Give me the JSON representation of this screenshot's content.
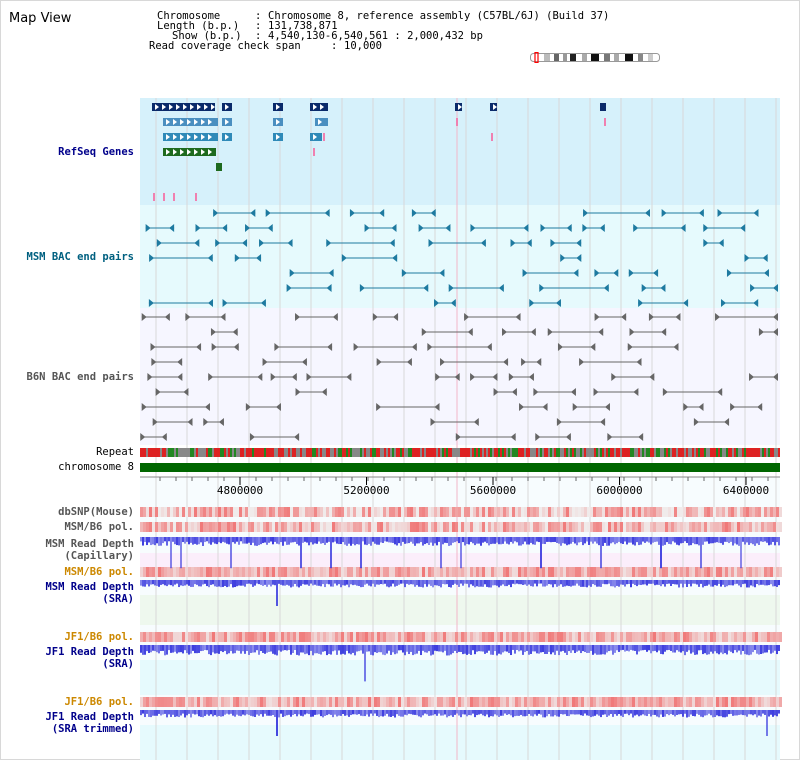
{
  "page": {
    "title": "Map View"
  },
  "info": {
    "chromosome_key": "Chromosome",
    "chromosome_value": "Chromosome 8, reference assembly (C57BL/6J) (Build 37)",
    "length_key": "Length (b.p.)",
    "length_value": "131,738,871",
    "show_key": "Show (b.p.)",
    "show_value": "4,540,130-6,540,561 : 2,000,432 bp",
    "coverage_key": "Read coverage check span",
    "coverage_value": "10,000"
  },
  "tracks": {
    "refseq_genes": "RefSeq Genes",
    "msm_bac": "MSM BAC end pairs",
    "b6n_bac": "B6N BAC end pairs",
    "repeat": "Repeat",
    "chromosome": "chromosome 8",
    "dbsnp": "dbSNP(Mouse)",
    "msm_b6_pol_1": "MSM/B6 pol.",
    "msm_depth_cap_1": "MSM Read Depth",
    "msm_depth_cap_2": "(Capillary)",
    "msm_b6_pol_2": "MSM/B6 pol.",
    "msm_depth_sra_1": "MSM Read Depth",
    "msm_depth_sra_2": "(SRA)",
    "jf1_pol_1": "JF1/B6 pol.",
    "jf1_depth_sra_1": "JF1 Read Depth",
    "jf1_depth_sra_2": "(SRA)",
    "jf1_pol_2": "JF1/B6 pol.",
    "jf1_depth_trim_1": "JF1 Read Depth",
    "jf1_depth_trim_2": "(SRA trimmed)"
  },
  "axis": {
    "ticks": [
      {
        "value": 4800000,
        "label": "4800000"
      },
      {
        "value": 5200000,
        "label": "5200000"
      },
      {
        "value": 5600000,
        "label": "5600000"
      },
      {
        "value": 6000000,
        "label": "6000000"
      },
      {
        "value": 6400000,
        "label": "6400000"
      }
    ]
  },
  "colors": {
    "refseq_bg": "#d6f1fb",
    "bac_bg": "#e6fafd",
    "b6n_bg": "#f6f6ff",
    "chromosome_bar": "#006600",
    "refseq_label": "#00008b",
    "msm_bac_label": "#006080",
    "b6n_label": "#555555",
    "depth_label": "#00008b",
    "jf1_pol_label": "#cc8800",
    "depth_bar": "#3333dd"
  }
}
